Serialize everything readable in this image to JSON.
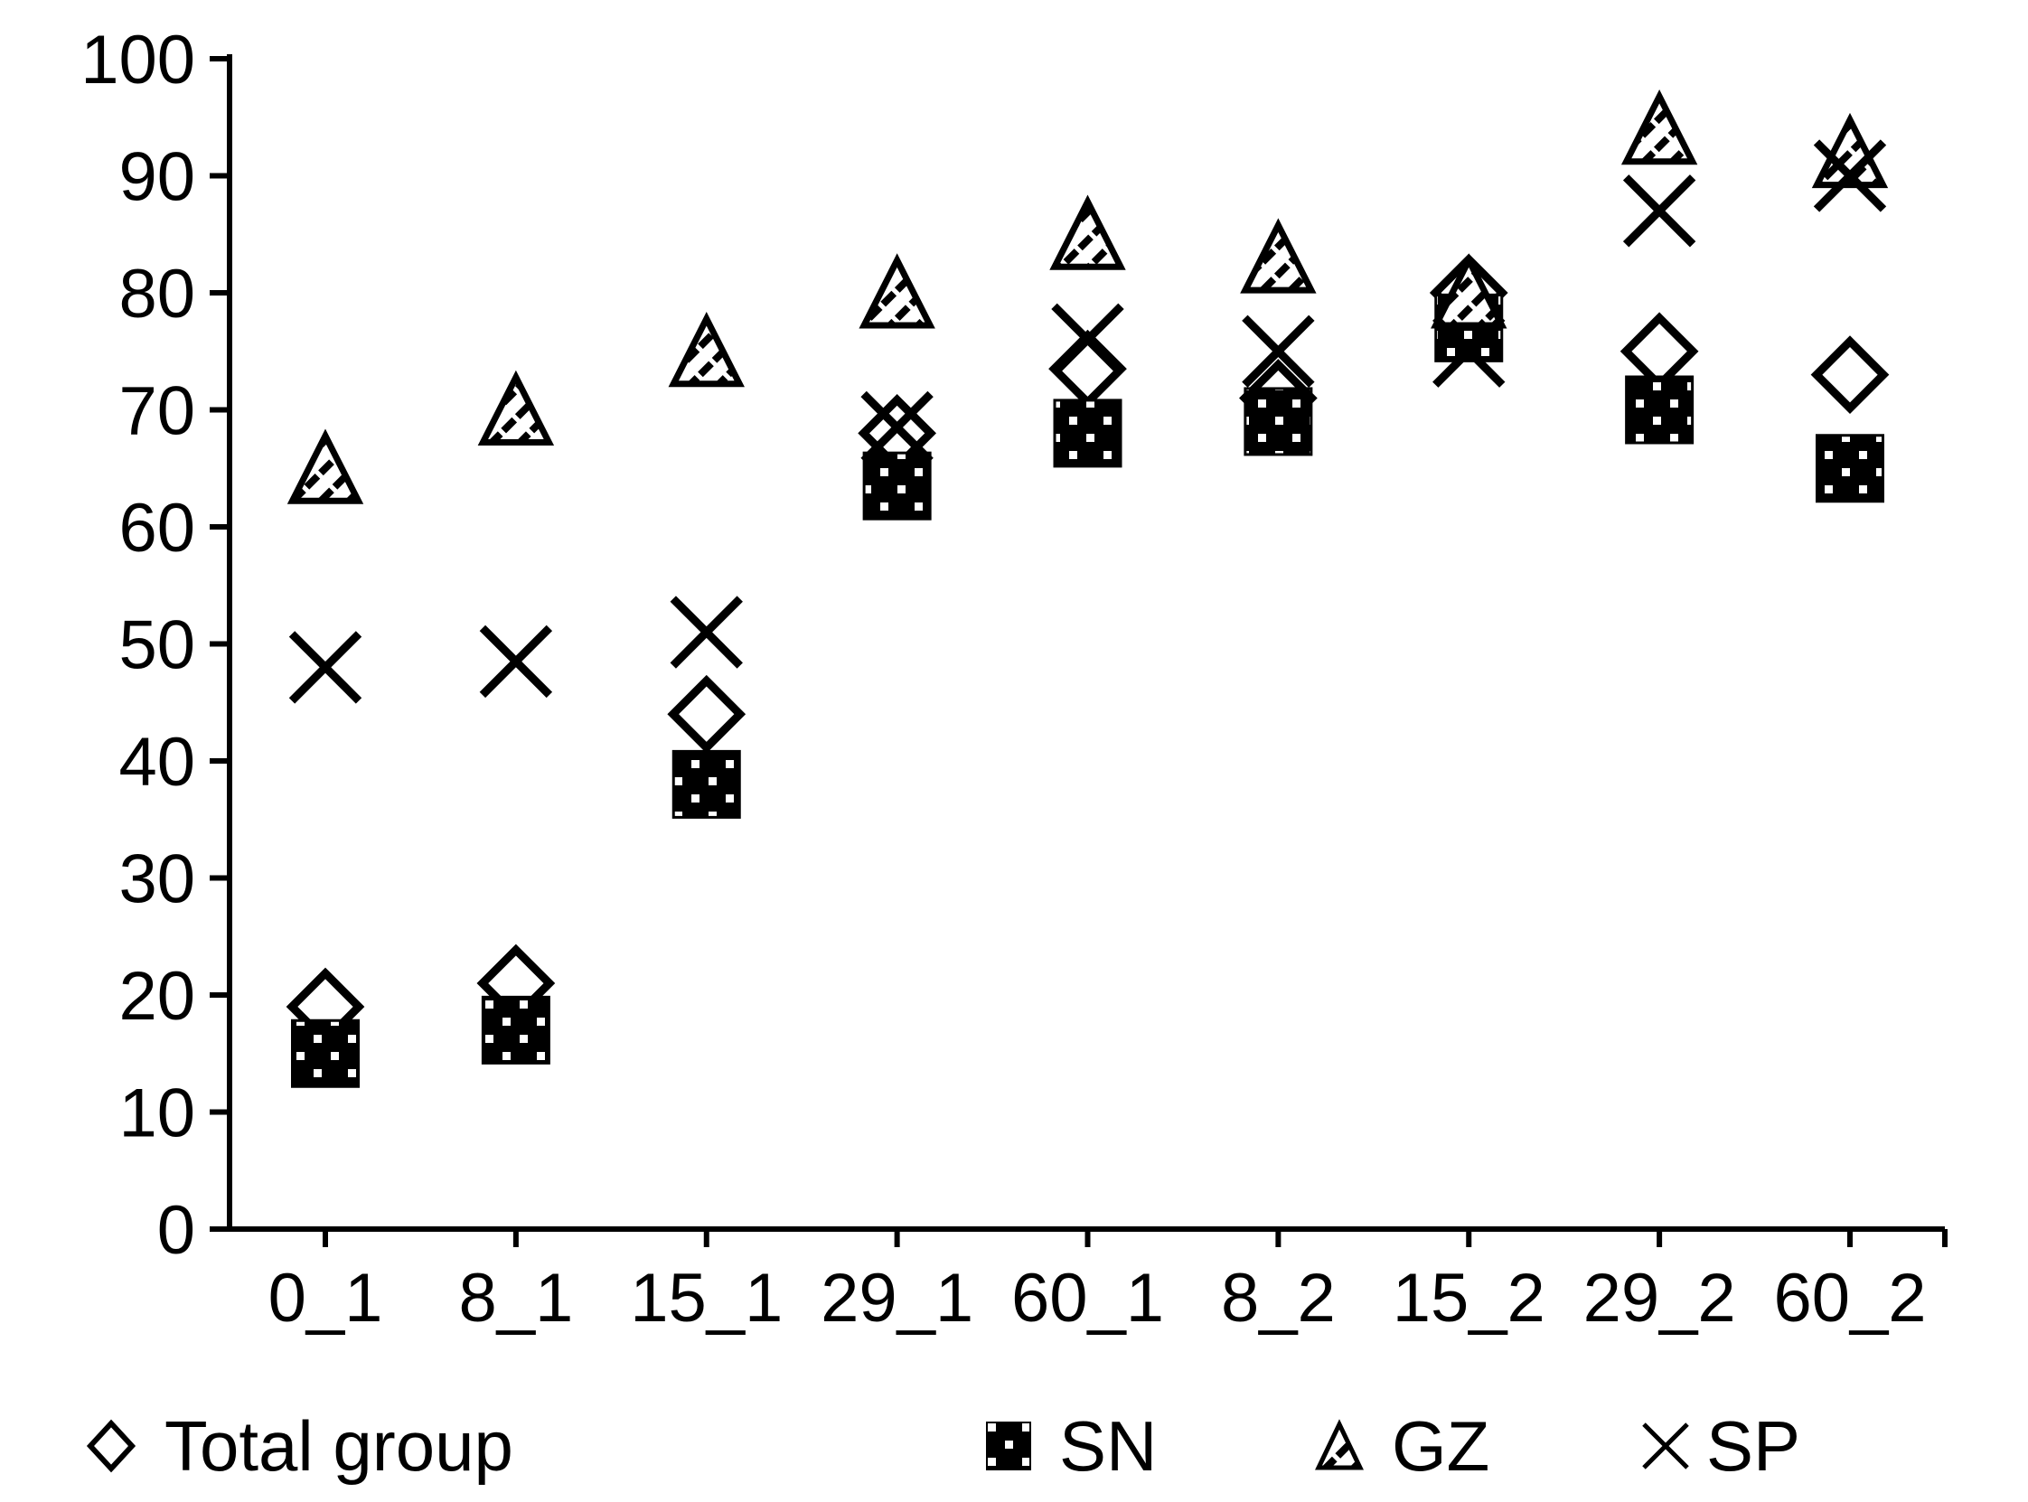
{
  "chart_data": {
    "type": "scatter",
    "title": "",
    "xlabel": "",
    "ylabel": "",
    "categories": [
      "0_1",
      "8_1",
      "15_1",
      "29_1",
      "60_1",
      "8_2",
      "15_2",
      "29_2",
      "60_2"
    ],
    "y_ticks": [
      0,
      10,
      20,
      30,
      40,
      50,
      60,
      70,
      80,
      90,
      100
    ],
    "ylim": [
      0,
      100
    ],
    "grid": false,
    "legend_position": "bottom",
    "series": [
      {
        "name": "Total group",
        "marker": "diamond-outline",
        "values": [
          19,
          21,
          44,
          68,
          73.5,
          71,
          80,
          75,
          73
        ]
      },
      {
        "name": "SN",
        "marker": "filled-square-dotted",
        "values": [
          15,
          17,
          38,
          63.5,
          68,
          69,
          77,
          70,
          65
        ]
      },
      {
        "name": "GZ",
        "marker": "hatched-triangle",
        "values": [
          65,
          70,
          75,
          80,
          85,
          83,
          80,
          94,
          92
        ]
      },
      {
        "name": "SP",
        "marker": "x-cross",
        "values": [
          48,
          48.5,
          51,
          68.5,
          76,
          75,
          75,
          87,
          90
        ]
      }
    ],
    "colors": {
      "foreground": "#000000",
      "background": "#ffffff"
    }
  }
}
